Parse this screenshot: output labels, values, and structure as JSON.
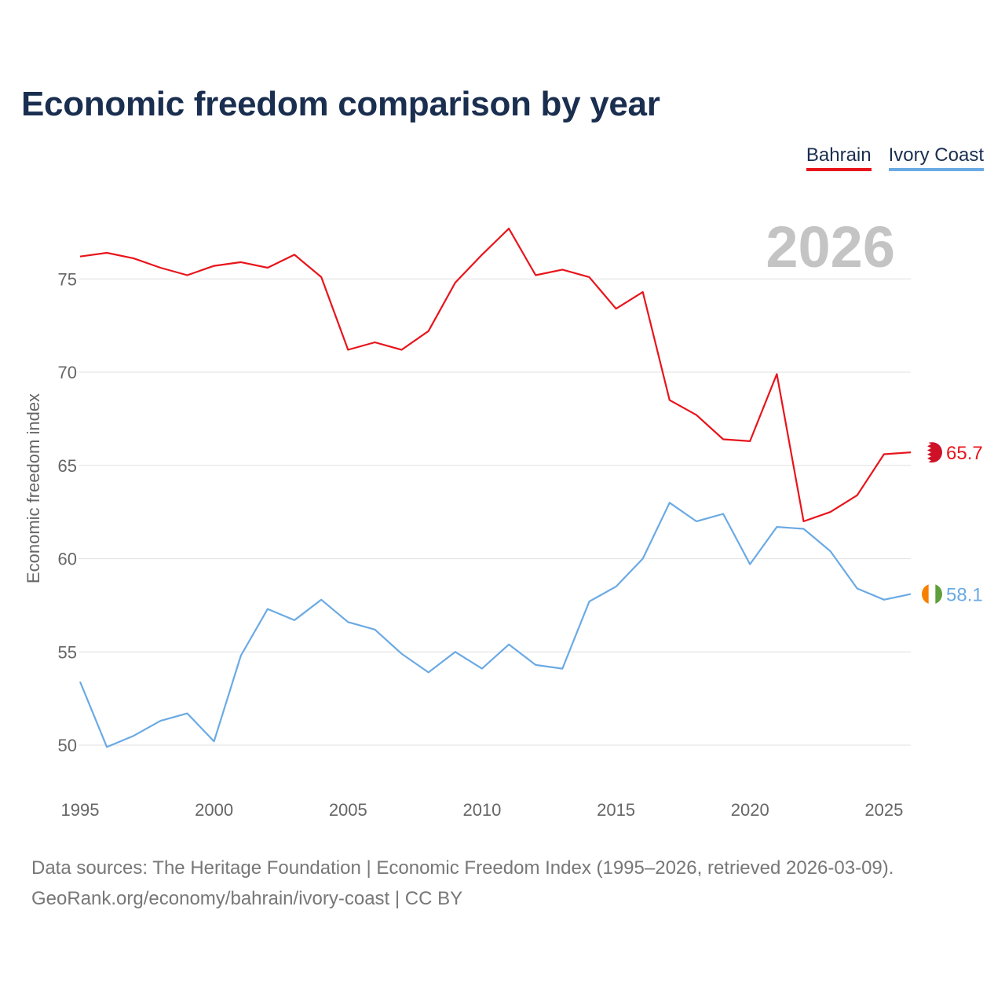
{
  "title": "Economic freedom comparison by year",
  "legend": [
    {
      "label": "Bahrain",
      "color": "#e8141b"
    },
    {
      "label": "Ivory Coast",
      "color": "#6aaae4"
    }
  ],
  "year_label": "2026",
  "colors": {
    "bahrain": "#e8141b",
    "ivory_coast": "#6aaae4",
    "grid": "#e6e6e6",
    "axis_text": "#666666",
    "year_text": "#c4c4c4"
  },
  "chart_data": {
    "type": "line",
    "title": "Economic freedom comparison by year",
    "xlabel": "",
    "ylabel": "Economic freedom index",
    "xlim": [
      1995,
      2026
    ],
    "ylim": [
      47.5,
      78.5
    ],
    "x_ticks": [
      1995,
      2000,
      2005,
      2010,
      2015,
      2020,
      2025
    ],
    "y_ticks": [
      50,
      55,
      60,
      65,
      70,
      75
    ],
    "x": [
      1995,
      1996,
      1997,
      1998,
      1999,
      2000,
      2001,
      2002,
      2003,
      2004,
      2005,
      2006,
      2007,
      2008,
      2009,
      2010,
      2011,
      2012,
      2013,
      2014,
      2015,
      2016,
      2017,
      2018,
      2019,
      2020,
      2021,
      2022,
      2023,
      2024,
      2025,
      2026
    ],
    "series": [
      {
        "name": "Bahrain",
        "color": "#e8141b",
        "end_label": "65.7",
        "values": [
          76.2,
          76.4,
          76.1,
          75.6,
          75.2,
          75.7,
          75.9,
          75.6,
          76.3,
          75.1,
          71.2,
          71.6,
          71.2,
          72.2,
          74.8,
          76.3,
          77.7,
          75.2,
          75.5,
          75.1,
          73.4,
          74.3,
          68.5,
          67.7,
          66.4,
          66.3,
          69.9,
          62.0,
          62.5,
          63.4,
          65.6,
          65.7
        ]
      },
      {
        "name": "Ivory Coast",
        "color": "#6aaae4",
        "end_label": "58.1",
        "values": [
          53.4,
          49.9,
          50.5,
          51.3,
          51.7,
          50.2,
          54.8,
          57.3,
          56.7,
          57.8,
          56.6,
          56.2,
          54.9,
          53.9,
          55.0,
          54.1,
          55.4,
          54.3,
          54.1,
          57.7,
          58.5,
          60.0,
          63.0,
          62.0,
          62.4,
          59.7,
          61.7,
          61.6,
          60.4,
          58.4,
          57.8,
          58.1
        ]
      }
    ]
  },
  "source": {
    "line1": "Data sources: The Heritage Foundation | Economic Freedom Index (1995–2026, retrieved 2026-03-09).",
    "line2": "GeoRank.org/economy/bahrain/ivory-coast | CC BY"
  }
}
